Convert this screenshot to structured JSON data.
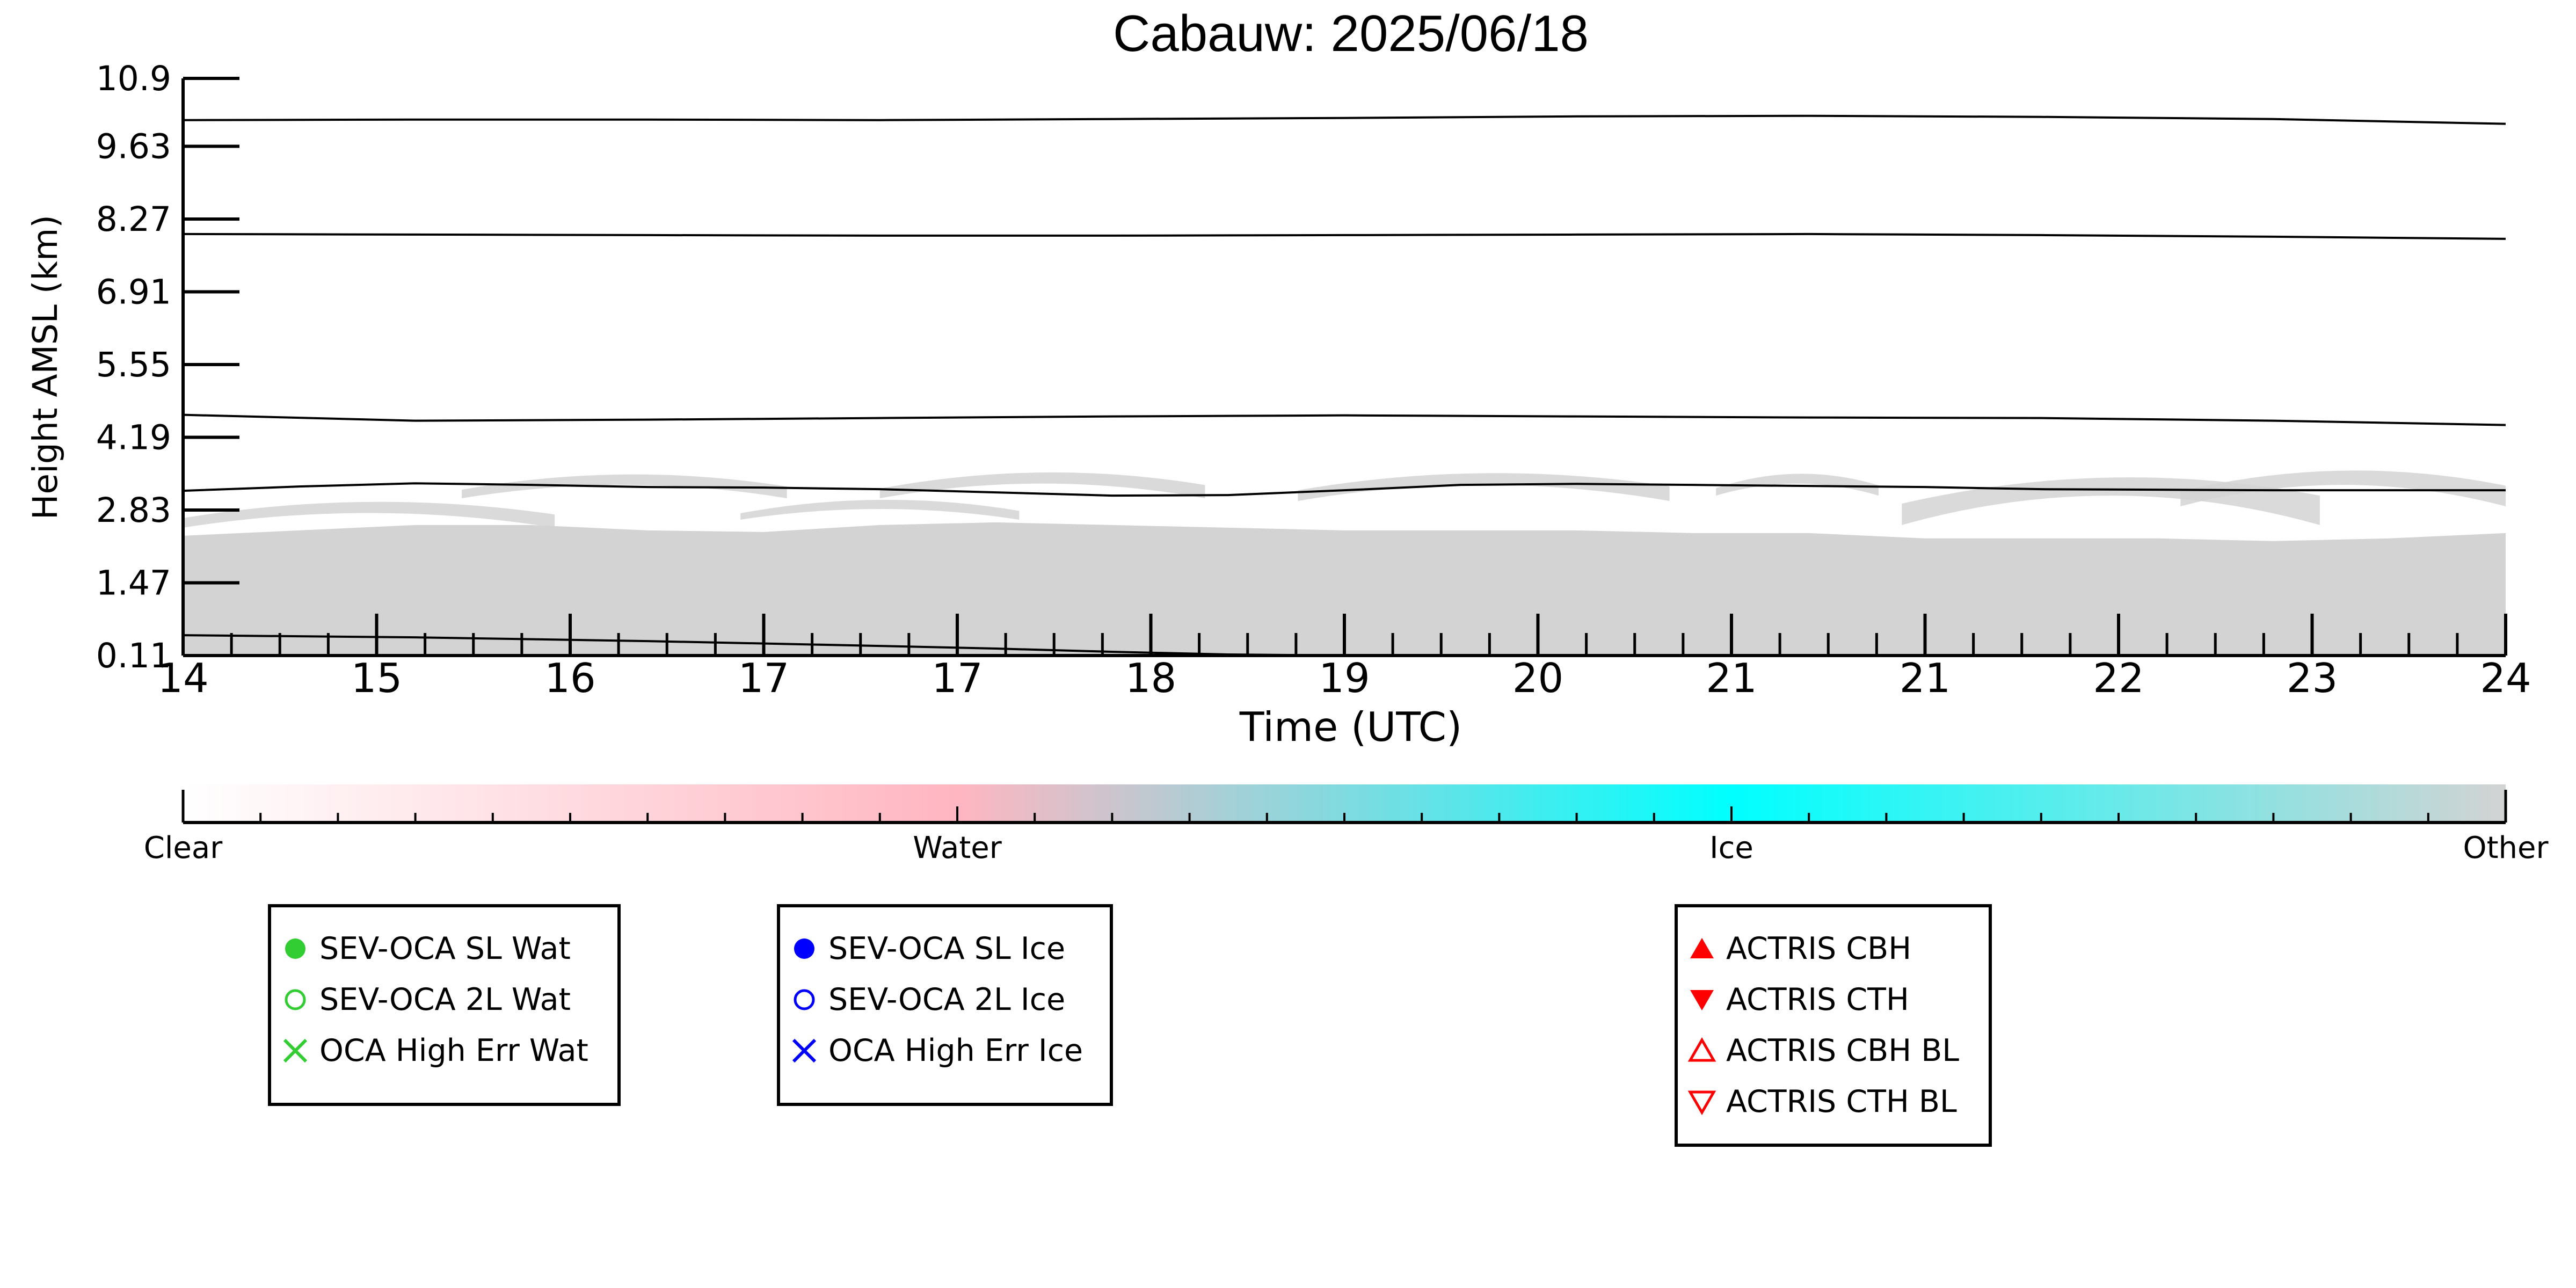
{
  "chart_data": {
    "type": "heatmap",
    "title": "Cabauw: 2025/06/18",
    "xlabel": "Time (UTC)",
    "ylabel": "Height AMSL (km)",
    "ylim": [
      0.11,
      10.9
    ],
    "xlim": [
      14,
      24
    ],
    "y_ticks": [
      "0.11",
      "1.47",
      "2.83",
      "4.19",
      "5.55",
      "6.91",
      "8.27",
      "9.63",
      "10.9"
    ],
    "x_ticks": [
      "14",
      "15",
      "16",
      "17",
      "17",
      "18",
      "19",
      "20",
      "21",
      "21",
      "22",
      "23",
      "24"
    ],
    "grid": false,
    "background_class": "Other",
    "colorbar": {
      "labels": [
        "Clear",
        "Water",
        "Ice",
        "Other"
      ],
      "colors": [
        "#ffffff",
        "#ffb6c1",
        "#00ffff",
        "#d3d3d3"
      ]
    },
    "height_lines_km": [
      {
        "x": [
          14,
          15,
          16,
          17,
          18,
          19,
          20,
          21,
          22,
          23,
          24
        ],
        "y": [
          10.12,
          10.13,
          10.13,
          10.12,
          10.14,
          10.16,
          10.19,
          10.2,
          10.18,
          10.14,
          10.05
        ]
      },
      {
        "x": [
          14,
          15,
          16,
          17,
          18,
          19,
          20,
          21,
          22,
          23,
          24
        ],
        "y": [
          7.99,
          7.98,
          7.97,
          7.96,
          7.96,
          7.97,
          7.98,
          7.99,
          7.97,
          7.94,
          7.9
        ]
      },
      {
        "x": [
          14,
          15,
          16,
          17,
          18,
          19,
          20,
          21,
          22,
          23,
          24
        ],
        "y": [
          4.61,
          4.5,
          4.52,
          4.55,
          4.58,
          4.6,
          4.58,
          4.56,
          4.55,
          4.5,
          4.42
        ]
      },
      {
        "x": [
          14,
          14.5,
          15,
          15.5,
          16,
          16.5,
          17,
          17.5,
          18,
          18.5,
          19,
          19.5,
          20,
          20.5,
          21,
          21.5,
          22,
          22.5,
          23,
          23.5,
          24
        ],
        "y": [
          3.19,
          3.27,
          3.33,
          3.3,
          3.26,
          3.25,
          3.22,
          3.16,
          3.1,
          3.11,
          3.2,
          3.3,
          3.32,
          3.3,
          3.28,
          3.26,
          3.22,
          3.21,
          3.2,
          3.2,
          3.2
        ]
      },
      {
        "x": [
          14,
          15,
          16,
          17,
          17.5,
          18,
          18.5,
          19
        ],
        "y": [
          0.49,
          0.45,
          0.38,
          0.29,
          0.24,
          0.18,
          0.13,
          0.11
        ]
      }
    ],
    "other_layer": {
      "x": [
        14,
        14.5,
        15,
        15.5,
        16,
        16.5,
        17,
        17.5,
        18,
        18.5,
        19,
        19.5,
        20,
        20.5,
        21,
        21.5,
        22,
        22.5,
        23,
        23.5,
        24
      ],
      "top_km": [
        2.35,
        2.45,
        2.55,
        2.55,
        2.45,
        2.42,
        2.55,
        2.6,
        2.55,
        2.5,
        2.45,
        2.45,
        2.45,
        2.4,
        2.4,
        2.3,
        2.3,
        2.3,
        2.25,
        2.3,
        2.4
      ],
      "patches": [
        {
          "x0": 14,
          "x1": 15.6,
          "base_km": 2.5,
          "top_km": 2.95
        },
        {
          "x0": 15.2,
          "x1": 16.6,
          "base_km": 3.05,
          "top_km": 3.45
        },
        {
          "x0": 16.4,
          "x1": 17.6,
          "base_km": 2.65,
          "top_km": 2.95
        },
        {
          "x0": 17.0,
          "x1": 18.4,
          "base_km": 3.05,
          "top_km": 3.5
        },
        {
          "x0": 18.8,
          "x1": 20.4,
          "base_km": 3.0,
          "top_km": 3.5
        },
        {
          "x0": 20.6,
          "x1": 21.3,
          "base_km": 3.1,
          "top_km": 3.45
        },
        {
          "x0": 21.4,
          "x1": 23.2,
          "base_km": 2.55,
          "top_km": 3.55
        },
        {
          "x0": 22.6,
          "x1": 24,
          "base_km": 2.9,
          "top_km": 3.6
        }
      ]
    }
  },
  "legends": {
    "sev_wat": [
      {
        "label": "SEV-OCA SL Wat",
        "symbol": "circle-filled",
        "color": "#32cd32"
      },
      {
        "label": "SEV-OCA 2L Wat",
        "symbol": "circle-open",
        "color": "#32cd32"
      },
      {
        "label": "OCA High Err Wat",
        "symbol": "cross",
        "color": "#32cd32"
      }
    ],
    "sev_ice": [
      {
        "label": "SEV-OCA SL Ice",
        "symbol": "circle-filled",
        "color": "#0000ff"
      },
      {
        "label": "SEV-OCA 2L Ice",
        "symbol": "circle-open",
        "color": "#0000ff"
      },
      {
        "label": "OCA High Err Ice",
        "symbol": "cross",
        "color": "#0000ff"
      }
    ],
    "actris": [
      {
        "label": "ACTRIS CBH",
        "symbol": "triangle-up-filled",
        "color": "#ff0000"
      },
      {
        "label": "ACTRIS CTH",
        "symbol": "triangle-down-filled",
        "color": "#ff0000"
      },
      {
        "label": "ACTRIS CBH BL",
        "symbol": "triangle-up-open",
        "color": "#ff0000"
      },
      {
        "label": "ACTRIS CTH BL",
        "symbol": "triangle-down-open",
        "color": "#ff0000"
      }
    ]
  }
}
